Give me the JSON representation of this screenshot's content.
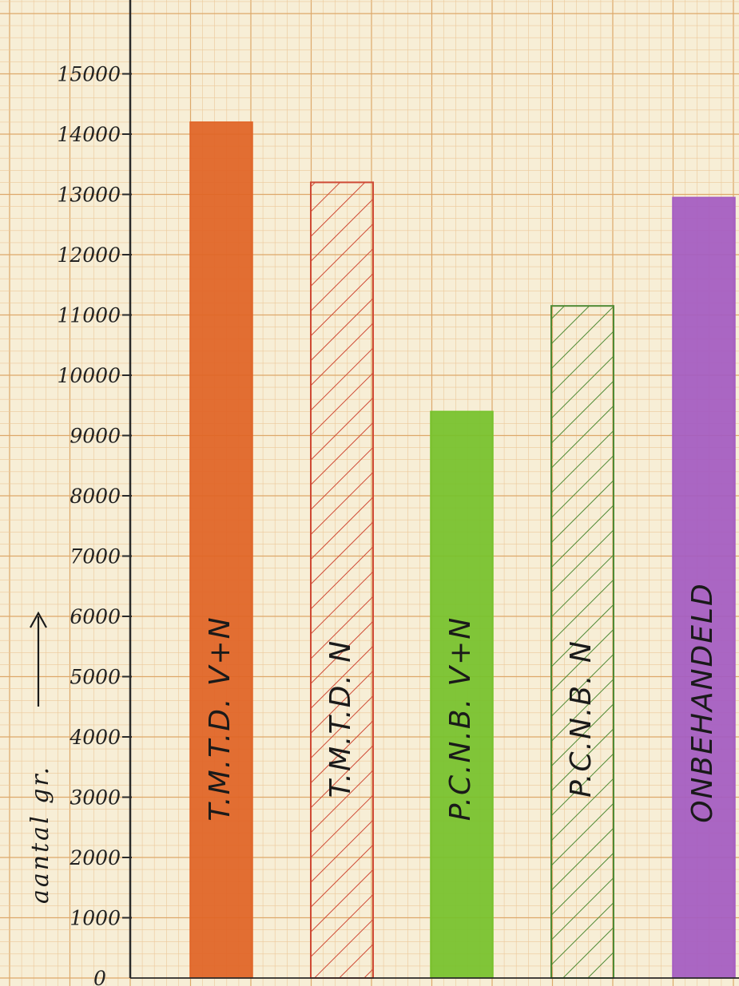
{
  "chart_data": {
    "type": "bar",
    "title": "",
    "ylabel": "aantal gr.",
    "ylim": [
      0,
      16000
    ],
    "yticks": [
      {
        "value": 0,
        "label": "0"
      },
      {
        "value": 1000,
        "label": "1000"
      },
      {
        "value": 2000,
        "label": "2000"
      },
      {
        "value": 3000,
        "label": "3000"
      },
      {
        "value": 4000,
        "label": "4000"
      },
      {
        "value": 5000,
        "label": "5000"
      },
      {
        "value": 6000,
        "label": "6000"
      },
      {
        "value": 7000,
        "label": "7000"
      },
      {
        "value": 8000,
        "label": "8000"
      },
      {
        "value": 9000,
        "label": "9000"
      },
      {
        "value": 10000,
        "label": "10000"
      },
      {
        "value": 11000,
        "label": "11000"
      },
      {
        "value": 12000,
        "label": "12000"
      },
      {
        "value": 13000,
        "label": "13000"
      },
      {
        "value": 14000,
        "label": "14000"
      },
      {
        "value": 15000,
        "label": "15000"
      }
    ],
    "grid": true,
    "bars": [
      {
        "label": "T.M.T.D. V+N",
        "value": 14200,
        "color": "#e06426",
        "style": "solid"
      },
      {
        "label": "T.M.T.D. N",
        "value": 13200,
        "color": "#cf4a35",
        "style": "hatched"
      },
      {
        "label": "P.C.N.B. V+N",
        "value": 9400,
        "color": "#76c22c",
        "style": "solid"
      },
      {
        "label": "P.C.N.B. N",
        "value": 11150,
        "color": "#4f8a34",
        "style": "hatched"
      },
      {
        "label": "ONBEHANDELD",
        "value": 12950,
        "color": "#a45bc2",
        "style": "solid"
      }
    ]
  },
  "colors": {
    "paper": "#f7eed6",
    "grid_minor": "#ecc89a",
    "grid_major": "#dda86a",
    "axis": "#2a2a2a",
    "ink": "#1a1a1a"
  }
}
